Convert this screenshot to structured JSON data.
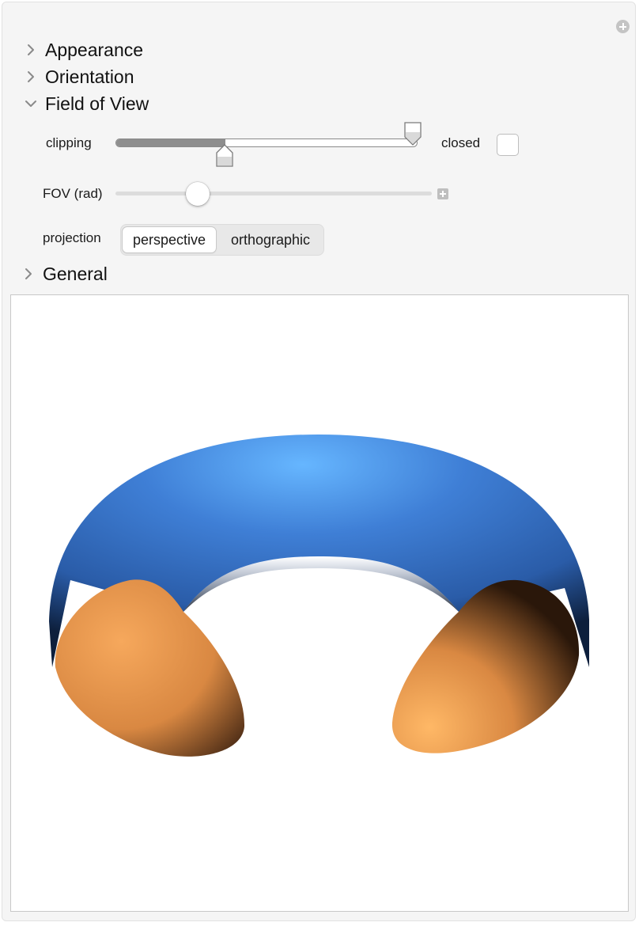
{
  "sections": {
    "appearance": "Appearance",
    "orientation": "Orientation",
    "field_of_view": "Field of View",
    "general": "General"
  },
  "field_of_view": {
    "clipping": {
      "label": "clipping",
      "near_fraction": 0.36,
      "far_fraction": 1.0,
      "closed_label": "closed",
      "closed_checked": false
    },
    "fov": {
      "label": "FOV (rad)",
      "value_fraction": 0.26
    },
    "projection": {
      "label": "projection",
      "options": [
        "perspective",
        "orthographic"
      ],
      "selected": "perspective"
    }
  },
  "plot": {
    "surface_color": "#3f7fd6",
    "cut_face_color": "#e89550"
  }
}
